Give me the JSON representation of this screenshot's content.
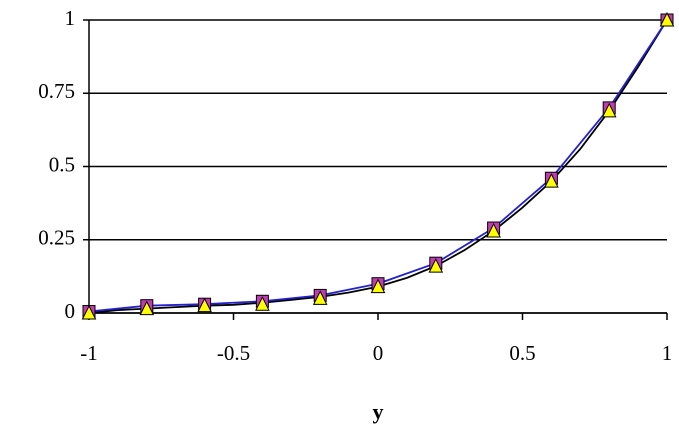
{
  "chart_data": {
    "type": "line",
    "xlabel": "y",
    "xlim": [
      -1,
      1
    ],
    "xticks": [
      -1,
      -0.5,
      0,
      0.5,
      1
    ],
    "ylim": [
      0,
      1
    ],
    "yticks": [
      0,
      0.25,
      0.5,
      0.75,
      1
    ],
    "grid": true,
    "series": [
      {
        "color": "#000000",
        "marker": "none",
        "x": [
          -1,
          -0.9,
          -0.8,
          -0.7,
          -0.6,
          -0.5,
          -0.4,
          -0.3,
          -0.2,
          -0.1,
          0,
          0.1,
          0.2,
          0.3,
          0.4,
          0.5,
          0.6,
          0.7,
          0.8,
          0.9,
          1
        ],
        "values": [
          0,
          0.01,
          0.015,
          0.02,
          0.025,
          0.028,
          0.035,
          0.045,
          0.055,
          0.07,
          0.09,
          0.12,
          0.16,
          0.215,
          0.28,
          0.36,
          0.45,
          0.56,
          0.69,
          0.84,
          1
        ]
      },
      {
        "color": "#c03cb4",
        "line_color": "#2222cc",
        "marker": "square",
        "x": [
          -1,
          -0.8,
          -0.6,
          -0.4,
          -0.2,
          0,
          0.2,
          0.4,
          0.6,
          0.8,
          1
        ],
        "values": [
          0.005,
          0.025,
          0.03,
          0.04,
          0.06,
          0.1,
          0.17,
          0.29,
          0.46,
          0.7,
          1
        ]
      },
      {
        "color": "#ffff00",
        "marker": "triangle",
        "x": [
          -1,
          -0.8,
          -0.6,
          -0.4,
          -0.2,
          0,
          0.2,
          0.4,
          0.6,
          0.8,
          1
        ],
        "values": [
          0,
          0.015,
          0.025,
          0.03,
          0.05,
          0.09,
          0.16,
          0.28,
          0.45,
          0.69,
          1
        ]
      }
    ]
  }
}
